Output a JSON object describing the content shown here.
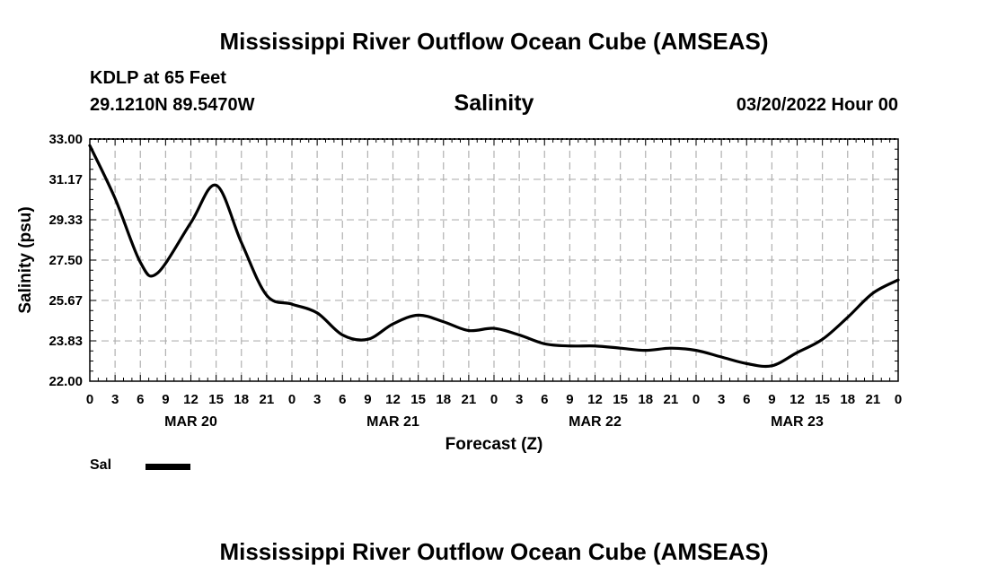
{
  "header": {
    "title": "Mississippi River Outflow Ocean Cube (AMSEAS)",
    "station": "KDLP at 65 Feet",
    "coordinates": "29.1210N  89.5470W",
    "chart_title": "Salinity",
    "timestamp": "03/20/2022 Hour 00"
  },
  "footer": {
    "title": "Mississippi River Outflow Ocean Cube (AMSEAS)"
  },
  "legend": {
    "label": "Sal"
  },
  "colors": {
    "line": "#000000",
    "grid": "#b0b0b0",
    "background": "#ffffff"
  },
  "chart_data": {
    "type": "line",
    "title": "Salinity",
    "xlabel": "Forecast (Z)",
    "ylabel": "Salinity (psu)",
    "ylim": [
      22.0,
      33.0
    ],
    "yticks": [
      "22.00",
      "23.83",
      "25.67",
      "27.50",
      "29.33",
      "31.17",
      "33.00"
    ],
    "xlim": [
      0,
      96
    ],
    "xtick_labels": [
      "0",
      "3",
      "6",
      "9",
      "12",
      "15",
      "18",
      "21",
      "0",
      "3",
      "6",
      "9",
      "12",
      "15",
      "18",
      "21",
      "0",
      "3",
      "6",
      "9",
      "12",
      "15",
      "18",
      "21",
      "0",
      "3",
      "6",
      "9",
      "12",
      "15",
      "18",
      "21",
      "0"
    ],
    "date_labels": [
      "MAR 20",
      "MAR 21",
      "MAR 22",
      "MAR 23"
    ],
    "grid": true,
    "legend_position": "bottom-left",
    "series": [
      {
        "name": "Sal",
        "x": [
          0,
          3,
          6,
          8,
          12,
          15,
          18,
          21,
          24,
          27,
          30,
          33,
          36,
          39,
          42,
          45,
          48,
          51,
          54,
          57,
          60,
          63,
          66,
          69,
          72,
          75,
          78,
          81,
          84,
          87,
          90,
          93,
          96
        ],
        "values": [
          32.7,
          30.3,
          27.4,
          26.9,
          29.2,
          30.9,
          28.3,
          25.9,
          25.5,
          25.1,
          24.1,
          23.9,
          24.6,
          25.0,
          24.7,
          24.3,
          24.4,
          24.1,
          23.7,
          23.6,
          23.6,
          23.5,
          23.4,
          23.5,
          23.4,
          23.1,
          22.8,
          22.7,
          23.3,
          23.9,
          24.9,
          26.0,
          26.6
        ]
      }
    ]
  }
}
